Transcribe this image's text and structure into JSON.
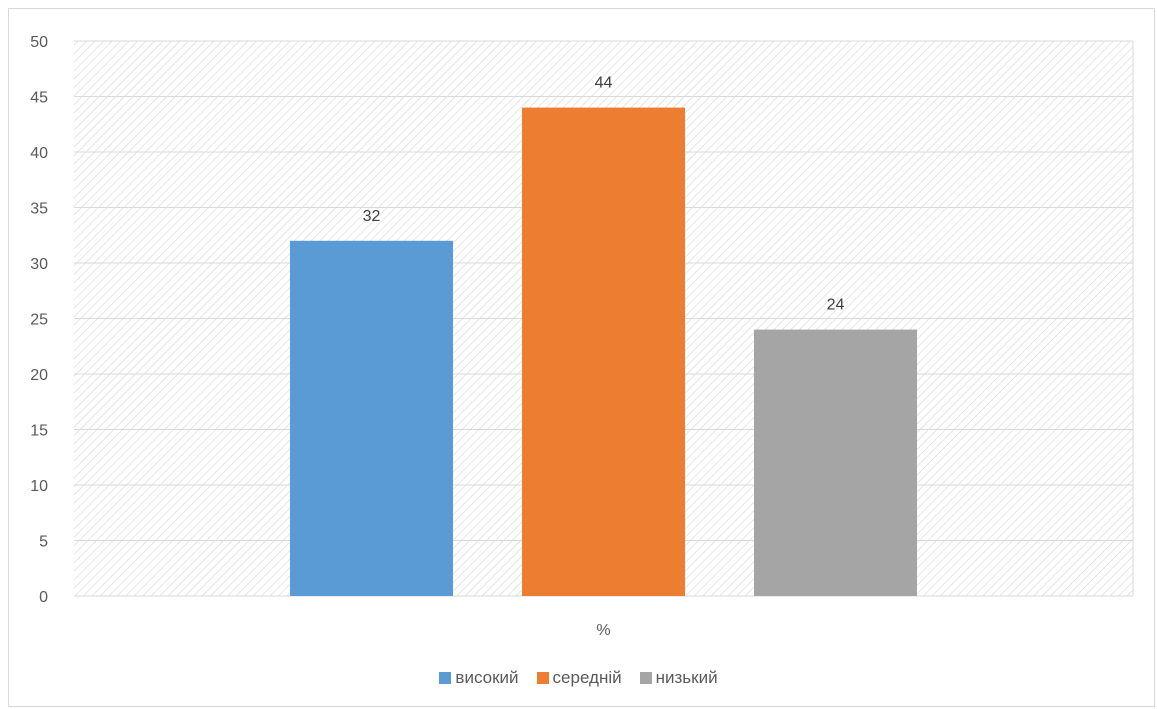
{
  "chart_data": {
    "type": "bar",
    "title": "",
    "xlabel": "",
    "ylabel": "",
    "categories": [
      "%"
    ],
    "ylim": [
      0,
      50
    ],
    "yticks": [
      0,
      5,
      10,
      15,
      20,
      25,
      30,
      35,
      40,
      45,
      50
    ],
    "grid": true,
    "legend_position": "bottom",
    "series": [
      {
        "name": "високий",
        "values": [
          32
        ],
        "color": "#5b9bd5"
      },
      {
        "name": "середній",
        "values": [
          44
        ],
        "color": "#ed7d31"
      },
      {
        "name": "низький",
        "values": [
          24
        ],
        "color": "#a5a5a5"
      }
    ]
  }
}
